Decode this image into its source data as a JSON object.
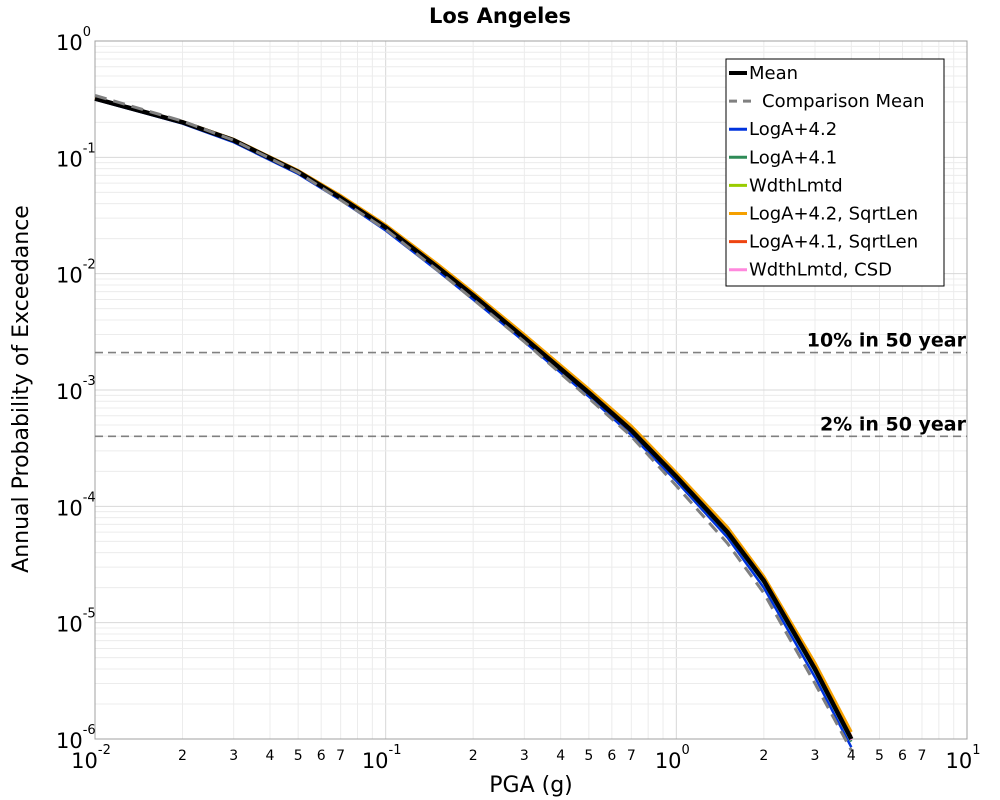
{
  "chart_data": {
    "type": "line",
    "title": "Los Angeles",
    "xlabel": "PGA (g)",
    "ylabel": "Annual Probability of Exceedance",
    "x_scale": "log",
    "y_scale": "log",
    "xlim": [
      0.01,
      10
    ],
    "ylim": [
      1e-06,
      1
    ],
    "x_major_ticks": [
      {
        "base": "10",
        "exp": "-2"
      },
      {
        "base": "10",
        "exp": "-1"
      },
      {
        "base": "10",
        "exp": "0"
      },
      {
        "base": "10",
        "exp": "1"
      }
    ],
    "y_major_ticks": [
      {
        "base": "10",
        "exp": "0"
      },
      {
        "base": "10",
        "exp": "-1"
      },
      {
        "base": "10",
        "exp": "-2"
      },
      {
        "base": "10",
        "exp": "-3"
      },
      {
        "base": "10",
        "exp": "-4"
      },
      {
        "base": "10",
        "exp": "-5"
      },
      {
        "base": "10",
        "exp": "-6"
      }
    ],
    "x_minor_labels": [
      "2",
      "3",
      "4",
      "5",
      "6",
      "7"
    ],
    "grid": true,
    "legend_position": "top-right",
    "series": [
      {
        "name": "Mean",
        "color": "#000000",
        "style": "solid",
        "width": 4.5,
        "x": [
          0.01,
          0.02,
          0.03,
          0.05,
          0.07,
          0.1,
          0.15,
          0.2,
          0.3,
          0.5,
          0.7,
          1.0,
          1.5,
          2.0,
          3.0,
          4.0
        ],
        "y": [
          0.32,
          0.2,
          0.14,
          0.075,
          0.045,
          0.025,
          0.0115,
          0.0065,
          0.0028,
          0.00095,
          0.00045,
          0.00018,
          6e-05,
          2.3e-05,
          4e-06,
          1e-06
        ]
      },
      {
        "name": "Comparison Mean",
        "color": "#808080",
        "style": "dashed",
        "width": 3,
        "x": [
          0.01,
          0.02,
          0.03,
          0.05,
          0.07,
          0.1,
          0.15,
          0.2,
          0.3,
          0.5,
          0.7,
          1.0,
          1.5,
          2.0,
          3.0,
          4.0
        ],
        "y": [
          0.34,
          0.205,
          0.14,
          0.074,
          0.043,
          0.024,
          0.0108,
          0.006,
          0.0026,
          0.00085,
          0.0004,
          0.00015,
          4.8e-05,
          1.8e-05,
          3e-06,
          8e-07
        ]
      },
      {
        "name": "LogA+4.2",
        "color": "#0033dd",
        "style": "solid",
        "width": 2.5,
        "x": [
          0.01,
          0.02,
          0.03,
          0.05,
          0.07,
          0.1,
          0.15,
          0.2,
          0.3,
          0.5,
          0.7,
          1.0,
          1.5,
          2.0,
          3.0,
          4.0
        ],
        "y": [
          0.315,
          0.195,
          0.135,
          0.072,
          0.043,
          0.0235,
          0.0107,
          0.006,
          0.0026,
          0.00088,
          0.00041,
          0.000165,
          5.4e-05,
          2e-05,
          3.4e-06,
          8.5e-07
        ]
      },
      {
        "name": "LogA+4.1",
        "color": "#2e8b57",
        "style": "solid",
        "width": 2.5,
        "x": [
          0.01,
          0.02,
          0.03,
          0.05,
          0.07,
          0.1,
          0.15,
          0.2,
          0.3,
          0.5,
          0.7,
          1.0,
          1.5,
          2.0,
          3.0,
          4.0
        ],
        "y": [
          0.318,
          0.198,
          0.138,
          0.074,
          0.0445,
          0.0245,
          0.0113,
          0.0064,
          0.00275,
          0.00093,
          0.00044,
          0.000175,
          5.8e-05,
          2.2e-05,
          3.8e-06,
          9.5e-07
        ]
      },
      {
        "name": "WdthLmtd",
        "color": "#99cc00",
        "style": "solid",
        "width": 2.5,
        "x": [
          0.01,
          0.02,
          0.03,
          0.05,
          0.07,
          0.1,
          0.15,
          0.2,
          0.3,
          0.5,
          0.7,
          1.0,
          1.5,
          2.0,
          3.0,
          4.0
        ],
        "y": [
          0.32,
          0.2,
          0.14,
          0.075,
          0.045,
          0.025,
          0.0115,
          0.0065,
          0.0028,
          0.00095,
          0.00045,
          0.00018,
          6e-05,
          2.3e-05,
          4e-06,
          1e-06
        ]
      },
      {
        "name": "LogA+4.2, SqrtLen",
        "color": "#f5a000",
        "style": "solid",
        "width": 3,
        "x": [
          0.01,
          0.02,
          0.03,
          0.05,
          0.07,
          0.1,
          0.15,
          0.2,
          0.3,
          0.5,
          0.7,
          1.0,
          1.5,
          2.0,
          3.0,
          4.0
        ],
        "y": [
          0.322,
          0.203,
          0.143,
          0.077,
          0.047,
          0.0262,
          0.0122,
          0.0069,
          0.003,
          0.00102,
          0.00049,
          0.000195,
          6.6e-05,
          2.5e-05,
          4.5e-06,
          1.15e-06
        ]
      },
      {
        "name": "LogA+4.1, SqrtLen",
        "color": "#ee4411",
        "style": "solid",
        "width": 2.5,
        "x": [
          0.01,
          0.02,
          0.03,
          0.05,
          0.07,
          0.1,
          0.15,
          0.2,
          0.3,
          0.5,
          0.7,
          1.0,
          1.5,
          2.0,
          3.0,
          4.0
        ],
        "y": [
          0.321,
          0.201,
          0.141,
          0.076,
          0.046,
          0.0255,
          0.0118,
          0.0067,
          0.0029,
          0.00098,
          0.00047,
          0.000187,
          6.3e-05,
          2.4e-05,
          4.2e-06,
          1.05e-06
        ]
      },
      {
        "name": "WdthLmtd, CSD",
        "color": "#ff88dd",
        "style": "solid",
        "width": 2.5,
        "x": [
          0.01,
          0.02,
          0.03,
          0.05,
          0.07,
          0.1,
          0.15,
          0.2,
          0.3,
          0.5,
          0.7,
          1.0,
          1.5,
          2.0,
          3.0,
          4.0
        ],
        "y": [
          0.319,
          0.199,
          0.139,
          0.0745,
          0.0448,
          0.0248,
          0.0114,
          0.0064,
          0.00277,
          0.00094,
          0.000445,
          0.000178,
          5.9e-05,
          2.25e-05,
          3.9e-06,
          9.8e-07
        ]
      }
    ],
    "reference_lines": [
      {
        "label": "10% in 50 year",
        "y": 0.0021,
        "color": "#808080"
      },
      {
        "label": "2% in 50 year",
        "y": 0.0004,
        "color": "#808080"
      }
    ]
  }
}
